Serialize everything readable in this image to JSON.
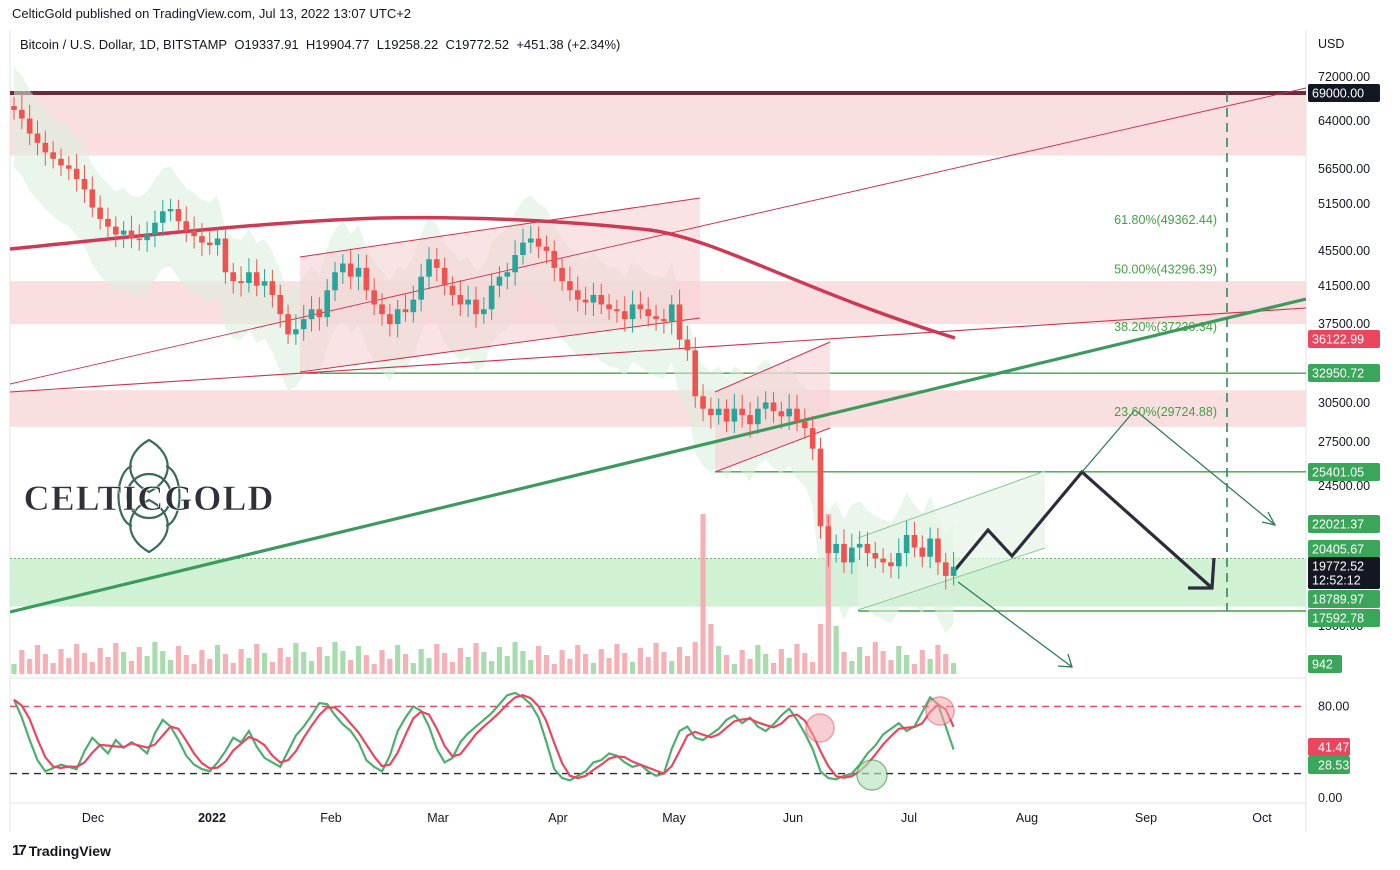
{
  "header": {
    "text": "CelticGold published on TradingView.com, Jul 13, 2022 13:07 UTC+2"
  },
  "legend": {
    "symbol": "Bitcoin / U.S. Dollar, 1D, BITSTAMP",
    "open": "O19337.91",
    "high": "H19904.77",
    "low": "L19258.22",
    "close": "C19772.52",
    "change": "+451.38 (+2.34%)"
  },
  "logo": {
    "text": "CELTICGOLD"
  },
  "footer": {
    "brand": "TradingView"
  },
  "colors": {
    "up": "#26a69a",
    "down": "#ef5350",
    "green_line": "#43a047",
    "red_line": "#d32f4c",
    "zone_red": "#f8d4d6",
    "zone_green": "#c8eecb",
    "dark": "#1e1e2e"
  },
  "chart_data": {
    "type": "candlestick",
    "price_axis": {
      "currency": "USD",
      "tick_labels": [
        "72000.00",
        "64000.00",
        "56500.00",
        "51500.00",
        "45500.00",
        "41500.00",
        "37500.00",
        "30500.00",
        "27500.00",
        "24500.00",
        "1500.00"
      ],
      "scale": "log"
    },
    "time_axis": {
      "labels": [
        "Dec",
        "2022",
        "Feb",
        "Mar",
        "Apr",
        "May",
        "Jun",
        "Jul",
        "Aug",
        "Sep",
        "Oct"
      ]
    },
    "price_badges": [
      {
        "label": "69000.00",
        "kind": "dark"
      },
      {
        "label": "36122.99",
        "kind": "red"
      },
      {
        "label": "32950.72",
        "kind": "green"
      },
      {
        "label": "25401.05",
        "kind": "green"
      },
      {
        "label": "22021.37",
        "kind": "green"
      },
      {
        "label": "20405.67",
        "kind": "green"
      },
      {
        "label": "19772.52",
        "kind": "dark"
      },
      {
        "label": "12:52:12",
        "kind": "dark"
      },
      {
        "label": "18789.97",
        "kind": "green"
      },
      {
        "label": "17592.78",
        "kind": "green"
      },
      {
        "label": "942",
        "kind": "green"
      }
    ],
    "fibonacci": [
      {
        "label": "61.80%(49362.44)",
        "price": 49362.44
      },
      {
        "label": "50.00%(43296.39)",
        "price": 43296.39
      },
      {
        "label": "38.20%(37230.34)",
        "price": 37230.34
      },
      {
        "label": "23.60%(29724.88)",
        "price": 29724.88
      }
    ],
    "horizontal_levels": [
      69000.0,
      32950.72,
      25401.05,
      17592.78
    ],
    "resistance_zones": [
      [
        58500,
        69000
      ],
      [
        37500,
        42000
      ],
      [
        28600,
        31500
      ]
    ],
    "support_zone": [
      17800,
      20200
    ],
    "oscillator": {
      "name": "Stochastic",
      "levels": [
        80,
        20
      ],
      "axis_labels": [
        "80.00",
        "0.00"
      ],
      "badges": [
        {
          "label": "41.47",
          "kind": "red"
        },
        {
          "label": "28.53",
          "kind": "green"
        }
      ]
    },
    "closes": [
      66000,
      64500,
      62000,
      60500,
      59000,
      58000,
      57000,
      56500,
      55000,
      53500,
      51000,
      49500,
      48500,
      47500,
      48000,
      47000,
      46800,
      47500,
      49000,
      50500,
      50800,
      49200,
      48000,
      47300,
      46500,
      46200,
      47000,
      43000,
      42000,
      41800,
      43000,
      41500,
      42000,
      40500,
      38500,
      36500,
      37000,
      38000,
      39000,
      38200,
      41000,
      43000,
      44000,
      42500,
      43500,
      41000,
      39500,
      38500,
      37500,
      39000,
      38700,
      40000,
      42500,
      44500,
      43500,
      41500,
      40500,
      39500,
      40000,
      38500,
      39000,
      41500,
      42500,
      43000,
      45000,
      46500,
      47000,
      46000,
      45500,
      43500,
      42000,
      41000,
      40000,
      39700,
      40500,
      39500,
      39000,
      38800,
      38000,
      39500,
      39000,
      38300,
      38000,
      37800,
      39500,
      36000,
      35000,
      31000,
      30000,
      29500,
      30000,
      29000,
      30000,
      29500,
      28800,
      30000,
      30500,
      29800,
      29400,
      30000,
      29000,
      28500,
      27000,
      22000,
      20500,
      21000,
      20000,
      20800,
      21000,
      20500,
      20200,
      20000,
      19800,
      20500,
      21500,
      20800,
      20300,
      21300,
      20000,
      19300,
      19772.52
    ],
    "stoch": [
      86,
      70,
      50,
      32,
      22,
      25,
      28,
      26,
      24,
      40,
      52,
      45,
      38,
      50,
      43,
      48,
      44,
      38,
      56,
      68,
      62,
      50,
      36,
      28,
      24,
      22,
      30,
      40,
      52,
      48,
      58,
      44,
      34,
      30,
      26,
      40,
      54,
      62,
      72,
      83,
      82,
      72,
      64,
      58,
      48,
      32,
      26,
      22,
      36,
      58,
      70,
      80,
      76,
      62,
      42,
      30,
      34,
      48,
      56,
      62,
      68,
      74,
      82,
      90,
      92,
      88,
      82,
      70,
      48,
      24,
      16,
      14,
      18,
      22,
      30,
      32,
      38,
      36,
      30,
      26,
      28,
      22,
      18,
      20,
      42,
      58,
      62,
      52,
      50,
      55,
      60,
      68,
      72,
      65,
      70,
      62,
      58,
      64,
      72,
      78,
      68,
      56,
      42,
      22,
      16,
      15,
      18,
      20,
      28,
      38,
      45,
      55,
      60,
      65,
      58,
      62,
      75,
      88,
      82,
      62,
      41.47
    ]
  }
}
